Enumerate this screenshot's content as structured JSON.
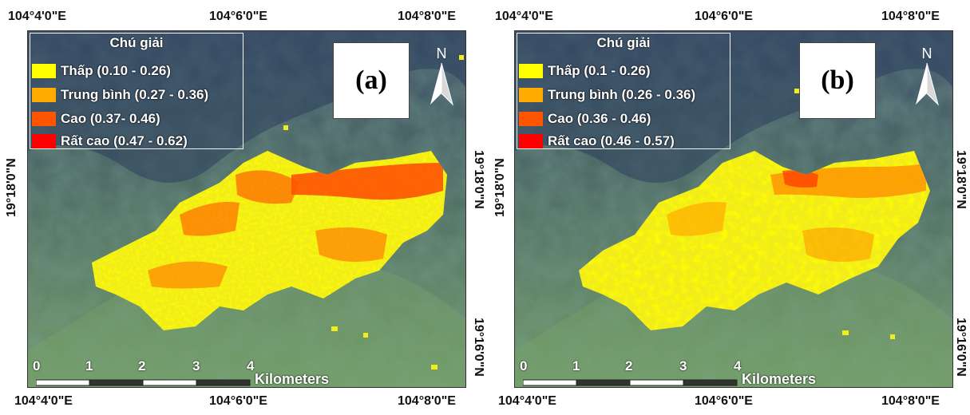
{
  "panels": [
    {
      "label": "(a)",
      "legend_title": "Chú giải",
      "legend": [
        {
          "label": "Thấp (0.10 - 0.26)",
          "color": "#ffff00"
        },
        {
          "label": "Trung bình (0.27 - 0.36)",
          "color": "#ffaa00"
        },
        {
          "label": "Cao (0.37- 0.46)",
          "color": "#ff5500"
        },
        {
          "label": "Rất cao (0.47 - 0.62)",
          "color": "#ff0000"
        }
      ],
      "top_coords": [
        "104°4'0\"E",
        "104°6'0\"E",
        "104°8'0\"E"
      ],
      "bottom_coords": [
        "104°4'0\"E",
        "104°6'0\"E",
        "104°8'0\"E"
      ],
      "left_coords": [
        "19°18'0\"N"
      ],
      "right_coords": [
        "19°18'0\"N",
        "19°16'0\"N"
      ],
      "scale_numbers": [
        "0",
        "1",
        "2",
        "3",
        "4"
      ],
      "scale_unit": "Kilometers",
      "north_label": "N"
    },
    {
      "label": "(b)",
      "legend_title": "Chú giải",
      "legend": [
        {
          "label": "Thấp (0.1 - 0.26)",
          "color": "#ffff00"
        },
        {
          "label": "Trung bình (0.26 - 0.36)",
          "color": "#ffaa00"
        },
        {
          "label": "Cao (0.36 - 0.46)",
          "color": "#ff5500"
        },
        {
          "label": "Rất cao (0.46 - 0.57)",
          "color": "#ff0000"
        }
      ],
      "top_coords": [
        "104°4'0\"E",
        "104°6'0\"E",
        "104°8'0\"E"
      ],
      "bottom_coords": [
        "104°4'0\"E",
        "104°6'0\"E",
        "104°8'0\"E"
      ],
      "left_coords": [
        "19°18'0\"N"
      ],
      "right_coords": [
        "19°18'0\"N",
        "19°16'0\"N"
      ],
      "scale_numbers": [
        "0",
        "1",
        "2",
        "3",
        "4"
      ],
      "scale_unit": "Kilometers",
      "north_label": "N"
    }
  ],
  "colors": {
    "terrain_dark": "#2e3f5c",
    "terrain_green": "#5f8a55",
    "terrain_light": "#9fc08a"
  }
}
